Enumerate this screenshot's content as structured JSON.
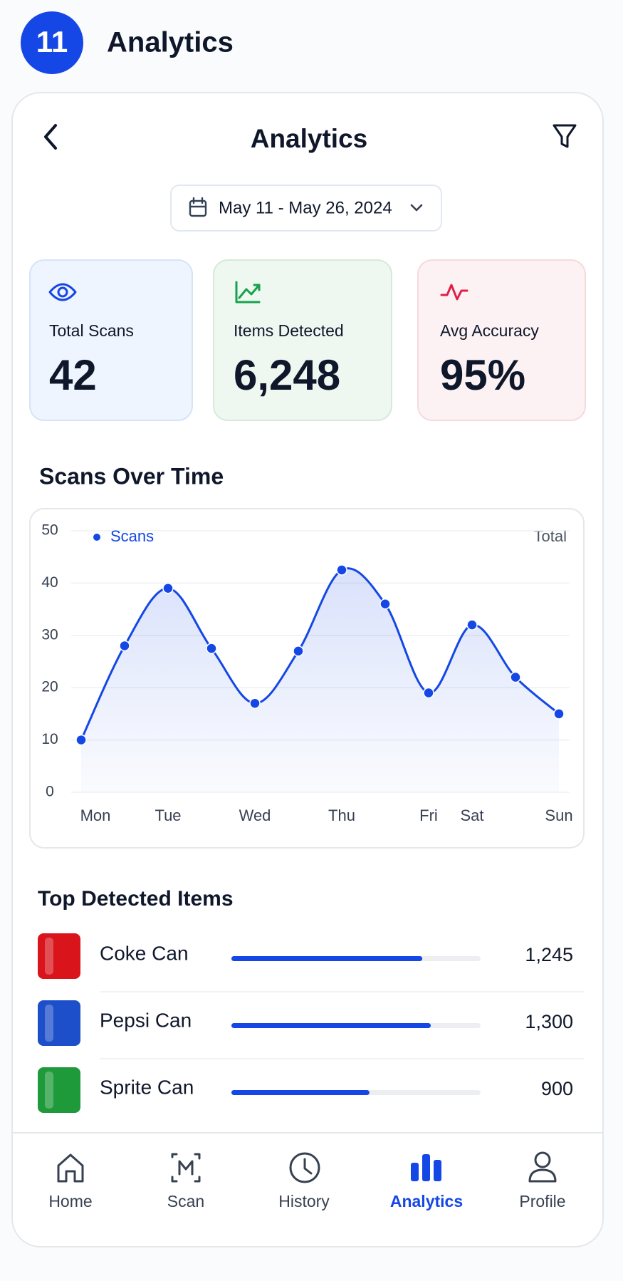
{
  "badge": "11",
  "header_title": "Analytics",
  "screen": {
    "title": "Analytics",
    "date_range": "May 11 - May 26, 2024"
  },
  "stats": [
    {
      "label": "Total Scans",
      "value": "42"
    },
    {
      "label": "Items Detected",
      "value": "6,248"
    },
    {
      "label": "Avg Accuracy",
      "value": "95%"
    }
  ],
  "chart_data": {
    "type": "line",
    "title": "Scans Over Time",
    "note": "Total",
    "categories": [
      "Mon",
      null,
      "Tue",
      null,
      "Wed",
      null,
      "Thu",
      null,
      "Fri",
      "Sat",
      null,
      "Sun"
    ],
    "series": [
      {
        "name": "Scans",
        "color": "#1447e6",
        "values": [
          10,
          28,
          39,
          27.5,
          17,
          27,
          42.5,
          36,
          19,
          32,
          22,
          15
        ]
      }
    ],
    "ylim": [
      0,
      50
    ],
    "yticks": [
      0,
      10,
      20,
      30,
      40,
      50
    ],
    "grid": true
  },
  "top_items": {
    "title": "Top Detected Items",
    "names": [
      "Coke Can",
      "Pepsi Can",
      "Sprite Can"
    ],
    "values": [
      1245,
      1300,
      900
    ],
    "value_labels": [
      "1,245",
      "1,300",
      "900"
    ],
    "icon_colors": [
      "#d9141b",
      "#1c4fc9",
      "#1f9a3a"
    ],
    "bar_color": "#1447e6"
  },
  "nav": {
    "items": [
      "Home",
      "Scan",
      "History",
      "Analytics",
      "Profile"
    ],
    "active": 3,
    "active_color": "#1447e6"
  }
}
